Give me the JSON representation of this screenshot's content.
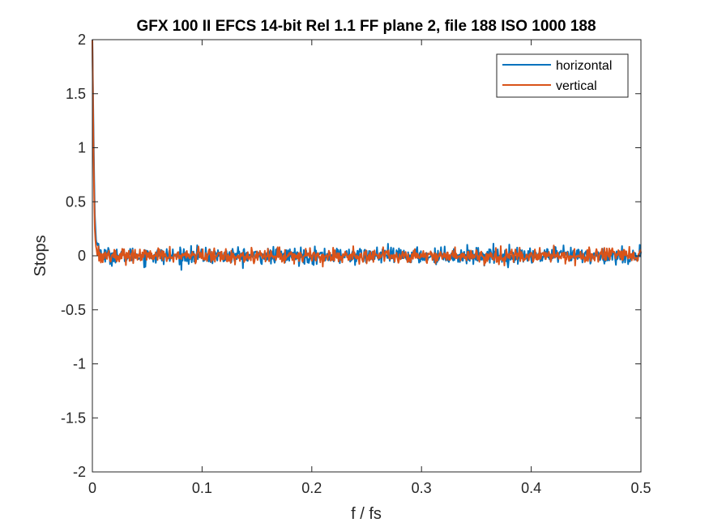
{
  "chart_data": {
    "type": "line",
    "title": "GFX 100 II EFCS 14-bit Rel 1.1 FF plane 2, file 188 ISO 1000 188",
    "xlabel": "f / fs",
    "ylabel": "Stops",
    "xlim": [
      0,
      0.5
    ],
    "ylim": [
      -2,
      2
    ],
    "x_ticks": [
      0,
      0.1,
      0.2,
      0.3,
      0.4,
      0.5
    ],
    "x_tick_labels": [
      "0",
      "0.1",
      "0.2",
      "0.3",
      "0.4",
      "0.5"
    ],
    "y_ticks": [
      2,
      1.5,
      1,
      0.5,
      0,
      -0.5,
      -1,
      -1.5,
      -2
    ],
    "y_tick_labels": [
      "2",
      "1.5",
      "1",
      "0.5",
      "0",
      "-0.5",
      "-1",
      "-1.5",
      "-2"
    ],
    "grid": false,
    "legend_position": "top-right",
    "noise_amplitude_estimate": 0.05,
    "series": [
      {
        "name": "horizontal",
        "color": "#0072BD",
        "x": [
          0,
          0.001,
          0.002,
          0.003,
          0.004,
          0.006,
          0.008,
          0.01,
          0.02,
          0.05,
          0.1,
          0.15,
          0.2,
          0.25,
          0.3,
          0.35,
          0.4,
          0.45,
          0.5
        ],
        "y": [
          2.0,
          1.2,
          0.45,
          0.2,
          0.1,
          0.05,
          0.03,
          0.0,
          0.0,
          0.0,
          0.0,
          0.0,
          0.0,
          0.0,
          0.0,
          0.0,
          0.0,
          0.0,
          0.0
        ]
      },
      {
        "name": "vertical",
        "color": "#D95319",
        "x": [
          0,
          0.001,
          0.002,
          0.003,
          0.004,
          0.006,
          0.008,
          0.01,
          0.02,
          0.05,
          0.1,
          0.15,
          0.2,
          0.25,
          0.3,
          0.35,
          0.4,
          0.45,
          0.5
        ],
        "y": [
          2.0,
          1.0,
          0.3,
          0.1,
          0.05,
          0.02,
          0.0,
          0.0,
          0.0,
          0.0,
          0.0,
          0.0,
          0.0,
          0.0,
          0.0,
          0.0,
          0.0,
          0.0,
          0.0
        ]
      }
    ]
  }
}
